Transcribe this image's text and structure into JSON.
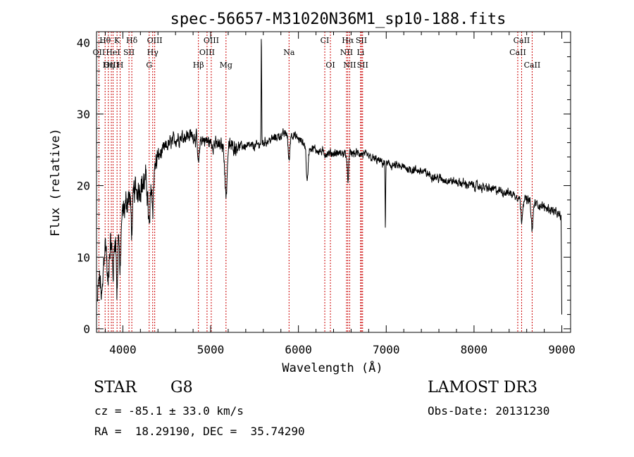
{
  "chart_data": {
    "type": "line",
    "title": "spec-56657-M31020N36M1_sp10-188.fits",
    "xlabel": "Wavelength (Å)",
    "ylabel": "Flux (relative)",
    "xlim": [
      3700,
      9100
    ],
    "ylim": [
      -0.5,
      41.5
    ],
    "x_ticks": [
      4000,
      5000,
      6000,
      7000,
      8000,
      9000
    ],
    "x_minor_step": 200,
    "y_ticks": [
      0,
      10,
      20,
      30,
      40
    ],
    "y_minor_step": 2,
    "line_color": "#000000",
    "line_marker_color": "#cc0000",
    "spectrum_continuum": [
      [
        3700,
        0.5
      ],
      [
        3720,
        6
      ],
      [
        3750,
        11
      ],
      [
        3800,
        12
      ],
      [
        3850,
        12
      ],
      [
        3900,
        13
      ],
      [
        3950,
        15
      ],
      [
        4000,
        16
      ],
      [
        4050,
        18
      ],
      [
        4100,
        19
      ],
      [
        4200,
        20
      ],
      [
        4300,
        21
      ],
      [
        4350,
        22
      ],
      [
        4400,
        24
      ],
      [
        4500,
        25.5
      ],
      [
        4600,
        26.5
      ],
      [
        4700,
        27
      ],
      [
        4800,
        27
      ],
      [
        4900,
        26.5
      ],
      [
        5000,
        26
      ],
      [
        5100,
        25.5
      ],
      [
        5200,
        25.5
      ],
      [
        5300,
        25.5
      ],
      [
        5400,
        25.5
      ],
      [
        5500,
        25.5
      ],
      [
        5600,
        26
      ],
      [
        5700,
        26.5
      ],
      [
        5800,
        27
      ],
      [
        5900,
        27.5
      ],
      [
        6000,
        26.5
      ],
      [
        6100,
        25.5
      ],
      [
        6200,
        25
      ],
      [
        6300,
        24.5
      ],
      [
        6400,
        24.5
      ],
      [
        6500,
        24.5
      ],
      [
        6600,
        24.5
      ],
      [
        6700,
        24.5
      ],
      [
        6800,
        24
      ],
      [
        6900,
        23.5
      ],
      [
        7000,
        23
      ],
      [
        7200,
        22.5
      ],
      [
        7400,
        22
      ],
      [
        7600,
        21
      ],
      [
        7800,
        20.5
      ],
      [
        8000,
        20
      ],
      [
        8200,
        19.5
      ],
      [
        8400,
        19
      ],
      [
        8500,
        18.5
      ],
      [
        8700,
        17.5
      ],
      [
        8900,
        16.5
      ],
      [
        9000,
        15.5
      ]
    ],
    "spectrum_features": [
      {
        "x": 3760,
        "w": 15,
        "d": -7
      },
      {
        "x": 3830,
        "w": 10,
        "d": -6
      },
      {
        "x": 3889,
        "w": 10,
        "d": -5
      },
      {
        "x": 3934,
        "w": 8,
        "d": -9
      },
      {
        "x": 3969,
        "w": 8,
        "d": -8
      },
      {
        "x": 4102,
        "w": 10,
        "d": -5
      },
      {
        "x": 4300,
        "w": 12,
        "d": -7
      },
      {
        "x": 4340,
        "w": 8,
        "d": -5
      },
      {
        "x": 4861,
        "w": 10,
        "d": -4
      },
      {
        "x": 5175,
        "w": 12,
        "d": -7
      },
      {
        "x": 5578,
        "w": 3,
        "d": 15
      },
      {
        "x": 5893,
        "w": 10,
        "d": -4
      },
      {
        "x": 6100,
        "w": 10,
        "d": -5
      },
      {
        "x": 6563,
        "w": 8,
        "d": -4
      },
      {
        "x": 6990,
        "w": 3,
        "d": -9
      },
      {
        "x": 8542,
        "w": 10,
        "d": -3
      },
      {
        "x": 8662,
        "w": 10,
        "d": -4
      }
    ],
    "lines": [
      {
        "label": "Hθ",
        "x": 3798,
        "row": 0
      },
      {
        "label": "K",
        "x": 3934,
        "row": 0
      },
      {
        "label": "Hδ",
        "x": 4102,
        "row": 0
      },
      {
        "label": "OIII",
        "x": 4363,
        "row": 0
      },
      {
        "label": "OIII",
        "x": 5007,
        "row": 0
      },
      {
        "label": "CI",
        "x": 6300,
        "row": 0
      },
      {
        "label": "Hα",
        "x": 6563,
        "row": 0
      },
      {
        "label": "SII",
        "x": 6717,
        "row": 0
      },
      {
        "label": "CaII",
        "x": 8542,
        "row": 0
      },
      {
        "label": "OII",
        "x": 3727,
        "row": 1
      },
      {
        "label": "HeI",
        "x": 3889,
        "row": 1
      },
      {
        "label": "SII",
        "x": 4070,
        "row": 1
      },
      {
        "label": "Hγ",
        "x": 4340,
        "row": 1
      },
      {
        "label": "OIII",
        "x": 4959,
        "row": 1
      },
      {
        "label": "Na",
        "x": 5893,
        "row": 1
      },
      {
        "label": "NII",
        "x": 6548,
        "row": 1
      },
      {
        "label": "Li",
        "x": 6708,
        "row": 1
      },
      {
        "label": "CaII",
        "x": 8498,
        "row": 1
      },
      {
        "label": "OIII",
        "x": 3869,
        "row": 2
      },
      {
        "label": "Hη",
        "x": 3835,
        "row": 2
      },
      {
        "label": "H",
        "x": 3969,
        "row": 2
      },
      {
        "label": "G",
        "x": 4300,
        "row": 2
      },
      {
        "label": "Hβ",
        "x": 4861,
        "row": 2
      },
      {
        "label": "Mg",
        "x": 5175,
        "row": 2
      },
      {
        "label": "OI",
        "x": 6364,
        "row": 2
      },
      {
        "label": "NII",
        "x": 6584,
        "row": 2
      },
      {
        "label": "SII",
        "x": 6731,
        "row": 2
      },
      {
        "label": "CaII",
        "x": 8662,
        "row": 2
      }
    ]
  },
  "info": {
    "class": "STAR",
    "subclass": "G8",
    "survey": "LAMOST DR3",
    "cz": "cz = -85.1 ± 33.0 km/s",
    "obs_date": "Obs-Date: 20131230",
    "coords": "RA =  18.29190, DEC =  35.74290"
  }
}
